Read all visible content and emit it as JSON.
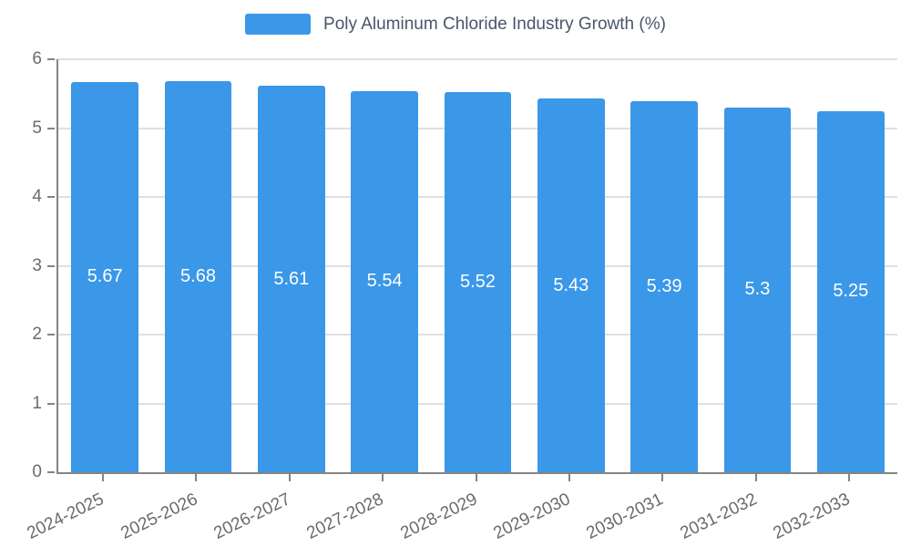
{
  "chart_data": {
    "type": "bar",
    "title": "Poly Aluminum Chloride Industry Growth (%)",
    "xlabel": "",
    "ylabel": "",
    "categories": [
      "2024-2025",
      "2025-2026",
      "2026-2027",
      "2027-2028",
      "2028-2029",
      "2029-2030",
      "2030-2031",
      "2031-2032",
      "2032-2033"
    ],
    "values": [
      5.67,
      5.68,
      5.61,
      5.54,
      5.52,
      5.43,
      5.39,
      5.3,
      5.25
    ],
    "ylim": [
      0,
      6
    ],
    "yticks": [
      0,
      1,
      2,
      3,
      4,
      5,
      6
    ],
    "grid": true,
    "legend": {
      "position": "top",
      "label": "Poly Aluminum Chloride Industry Growth (%)",
      "swatch": "bar-color-swatch"
    },
    "colors": {
      "bar": "#3b97e8",
      "bar_label": "#ffffff",
      "grid": "#e0e0e0",
      "axis": "#848484",
      "tick_label": "#6b6b6b",
      "title": "#4a5568"
    }
  }
}
